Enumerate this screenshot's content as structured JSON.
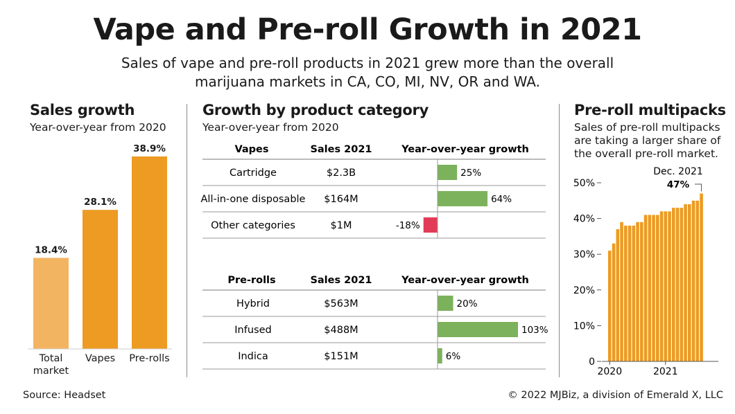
{
  "header": {
    "title": "Vape and Pre-roll Growth in 2021",
    "subtitle": "Sales of vape and pre-roll products in 2021 grew more than the overall marijuana markets in CA, CO, MI, NV, OR and WA."
  },
  "colors": {
    "light_orange": "#f3b462",
    "orange": "#ed9b22",
    "green": "#7cb25b",
    "red": "#e23b57",
    "rule": "#888888"
  },
  "panels": {
    "sales_growth": {
      "title": "Sales growth",
      "subtitle": "Year-over-year from 2020"
    },
    "category": {
      "title": "Growth by product category",
      "subtitle": "Year-over-year from 2020"
    },
    "multipacks": {
      "title": "Pre-roll multipacks",
      "subtitle": "Sales of pre-roll multipacks are taking a larger share of the overall pre-roll market."
    }
  },
  "footer": {
    "source": "Source: Headset",
    "credit": "© 2022 MJBiz, a division of Emerald X, LLC"
  },
  "chart_data": [
    {
      "type": "bar",
      "title": "Sales growth",
      "subtitle": "Year-over-year from 2020",
      "categories": [
        [
          "Total",
          "market"
        ],
        [
          "Vapes"
        ],
        [
          "Pre-rolls"
        ]
      ],
      "values": [
        18.4,
        28.1,
        38.9
      ],
      "value_labels": [
        "18.4%",
        "28.1%",
        "38.9%"
      ],
      "bar_colors": [
        "#f3b462",
        "#ed9b22",
        "#ed9b22"
      ],
      "ylim": [
        0,
        40
      ]
    },
    {
      "type": "table",
      "title": "Growth by product category",
      "subtitle": "Year-over-year from 2020",
      "columns": [
        "Sales 2021",
        "Year-over-year growth"
      ],
      "xlim": [
        -18,
        103
      ],
      "groups": [
        {
          "name": "Vapes",
          "rows": [
            {
              "label": "Cartridge",
              "sales": "$2.3B",
              "growth": 25,
              "growth_label": "25%"
            },
            {
              "label": "All-in-one disposable",
              "sales": "$164M",
              "growth": 64,
              "growth_label": "64%"
            },
            {
              "label": "Other categories",
              "sales": "$1M",
              "growth": -18,
              "growth_label": "-18%"
            }
          ]
        },
        {
          "name": "Pre-rolls",
          "rows": [
            {
              "label": "Hybrid",
              "sales": "$563M",
              "growth": 20,
              "growth_label": "20%"
            },
            {
              "label": "Infused",
              "sales": "$488M",
              "growth": 103,
              "growth_label": "103%"
            },
            {
              "label": "Indica",
              "sales": "$151M",
              "growth": 6,
              "growth_label": "6%"
            }
          ]
        }
      ]
    },
    {
      "type": "bar",
      "title": "Pre-roll multipacks",
      "subtitle": "Sales of pre-roll multipacks are taking a larger share of the overall pre-roll market.",
      "ylim": [
        0,
        50
      ],
      "y_ticks": [
        0,
        10,
        20,
        30,
        40,
        50
      ],
      "y_tick_labels": [
        "0",
        "10%",
        "20%",
        "30%",
        "40%",
        "50%"
      ],
      "x_tick_labels": [
        "2020",
        "2021"
      ],
      "x_tick_index": [
        0,
        14
      ],
      "values": [
        31,
        33,
        37,
        39,
        38,
        38,
        38,
        39,
        39,
        41,
        41,
        41,
        41,
        42,
        42,
        42,
        43,
        43,
        43,
        44,
        44,
        45,
        45,
        47
      ],
      "annotation": {
        "label": "Dec. 2021",
        "value_label": "47%",
        "index": 23
      },
      "grid": false
    }
  ]
}
